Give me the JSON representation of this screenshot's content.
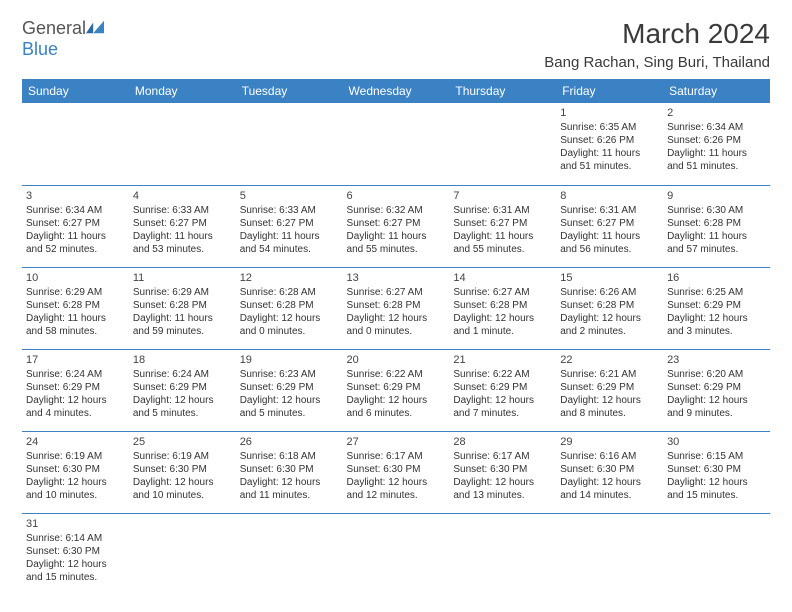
{
  "logo": {
    "text1": "General",
    "text2": "Blue"
  },
  "title": "March 2024",
  "location": "Bang Rachan, Sing Buri, Thailand",
  "colors": {
    "header_bg": "#3b82c4",
    "header_fg": "#ffffff",
    "border": "#3b82c4",
    "text": "#333333",
    "bg": "#ffffff"
  },
  "dayNames": [
    "Sunday",
    "Monday",
    "Tuesday",
    "Wednesday",
    "Thursday",
    "Friday",
    "Saturday"
  ],
  "weeks": [
    [
      null,
      null,
      null,
      null,
      null,
      {
        "n": "1",
        "sr": "Sunrise: 6:35 AM",
        "ss": "Sunset: 6:26 PM",
        "dl": "Daylight: 11 hours and 51 minutes."
      },
      {
        "n": "2",
        "sr": "Sunrise: 6:34 AM",
        "ss": "Sunset: 6:26 PM",
        "dl": "Daylight: 11 hours and 51 minutes."
      }
    ],
    [
      {
        "n": "3",
        "sr": "Sunrise: 6:34 AM",
        "ss": "Sunset: 6:27 PM",
        "dl": "Daylight: 11 hours and 52 minutes."
      },
      {
        "n": "4",
        "sr": "Sunrise: 6:33 AM",
        "ss": "Sunset: 6:27 PM",
        "dl": "Daylight: 11 hours and 53 minutes."
      },
      {
        "n": "5",
        "sr": "Sunrise: 6:33 AM",
        "ss": "Sunset: 6:27 PM",
        "dl": "Daylight: 11 hours and 54 minutes."
      },
      {
        "n": "6",
        "sr": "Sunrise: 6:32 AM",
        "ss": "Sunset: 6:27 PM",
        "dl": "Daylight: 11 hours and 55 minutes."
      },
      {
        "n": "7",
        "sr": "Sunrise: 6:31 AM",
        "ss": "Sunset: 6:27 PM",
        "dl": "Daylight: 11 hours and 55 minutes."
      },
      {
        "n": "8",
        "sr": "Sunrise: 6:31 AM",
        "ss": "Sunset: 6:27 PM",
        "dl": "Daylight: 11 hours and 56 minutes."
      },
      {
        "n": "9",
        "sr": "Sunrise: 6:30 AM",
        "ss": "Sunset: 6:28 PM",
        "dl": "Daylight: 11 hours and 57 minutes."
      }
    ],
    [
      {
        "n": "10",
        "sr": "Sunrise: 6:29 AM",
        "ss": "Sunset: 6:28 PM",
        "dl": "Daylight: 11 hours and 58 minutes."
      },
      {
        "n": "11",
        "sr": "Sunrise: 6:29 AM",
        "ss": "Sunset: 6:28 PM",
        "dl": "Daylight: 11 hours and 59 minutes."
      },
      {
        "n": "12",
        "sr": "Sunrise: 6:28 AM",
        "ss": "Sunset: 6:28 PM",
        "dl": "Daylight: 12 hours and 0 minutes."
      },
      {
        "n": "13",
        "sr": "Sunrise: 6:27 AM",
        "ss": "Sunset: 6:28 PM",
        "dl": "Daylight: 12 hours and 0 minutes."
      },
      {
        "n": "14",
        "sr": "Sunrise: 6:27 AM",
        "ss": "Sunset: 6:28 PM",
        "dl": "Daylight: 12 hours and 1 minute."
      },
      {
        "n": "15",
        "sr": "Sunrise: 6:26 AM",
        "ss": "Sunset: 6:28 PM",
        "dl": "Daylight: 12 hours and 2 minutes."
      },
      {
        "n": "16",
        "sr": "Sunrise: 6:25 AM",
        "ss": "Sunset: 6:29 PM",
        "dl": "Daylight: 12 hours and 3 minutes."
      }
    ],
    [
      {
        "n": "17",
        "sr": "Sunrise: 6:24 AM",
        "ss": "Sunset: 6:29 PM",
        "dl": "Daylight: 12 hours and 4 minutes."
      },
      {
        "n": "18",
        "sr": "Sunrise: 6:24 AM",
        "ss": "Sunset: 6:29 PM",
        "dl": "Daylight: 12 hours and 5 minutes."
      },
      {
        "n": "19",
        "sr": "Sunrise: 6:23 AM",
        "ss": "Sunset: 6:29 PM",
        "dl": "Daylight: 12 hours and 5 minutes."
      },
      {
        "n": "20",
        "sr": "Sunrise: 6:22 AM",
        "ss": "Sunset: 6:29 PM",
        "dl": "Daylight: 12 hours and 6 minutes."
      },
      {
        "n": "21",
        "sr": "Sunrise: 6:22 AM",
        "ss": "Sunset: 6:29 PM",
        "dl": "Daylight: 12 hours and 7 minutes."
      },
      {
        "n": "22",
        "sr": "Sunrise: 6:21 AM",
        "ss": "Sunset: 6:29 PM",
        "dl": "Daylight: 12 hours and 8 minutes."
      },
      {
        "n": "23",
        "sr": "Sunrise: 6:20 AM",
        "ss": "Sunset: 6:29 PM",
        "dl": "Daylight: 12 hours and 9 minutes."
      }
    ],
    [
      {
        "n": "24",
        "sr": "Sunrise: 6:19 AM",
        "ss": "Sunset: 6:30 PM",
        "dl": "Daylight: 12 hours and 10 minutes."
      },
      {
        "n": "25",
        "sr": "Sunrise: 6:19 AM",
        "ss": "Sunset: 6:30 PM",
        "dl": "Daylight: 12 hours and 10 minutes."
      },
      {
        "n": "26",
        "sr": "Sunrise: 6:18 AM",
        "ss": "Sunset: 6:30 PM",
        "dl": "Daylight: 12 hours and 11 minutes."
      },
      {
        "n": "27",
        "sr": "Sunrise: 6:17 AM",
        "ss": "Sunset: 6:30 PM",
        "dl": "Daylight: 12 hours and 12 minutes."
      },
      {
        "n": "28",
        "sr": "Sunrise: 6:17 AM",
        "ss": "Sunset: 6:30 PM",
        "dl": "Daylight: 12 hours and 13 minutes."
      },
      {
        "n": "29",
        "sr": "Sunrise: 6:16 AM",
        "ss": "Sunset: 6:30 PM",
        "dl": "Daylight: 12 hours and 14 minutes."
      },
      {
        "n": "30",
        "sr": "Sunrise: 6:15 AM",
        "ss": "Sunset: 6:30 PM",
        "dl": "Daylight: 12 hours and 15 minutes."
      }
    ],
    [
      {
        "n": "31",
        "sr": "Sunrise: 6:14 AM",
        "ss": "Sunset: 6:30 PM",
        "dl": "Daylight: 12 hours and 15 minutes."
      },
      null,
      null,
      null,
      null,
      null,
      null
    ]
  ]
}
